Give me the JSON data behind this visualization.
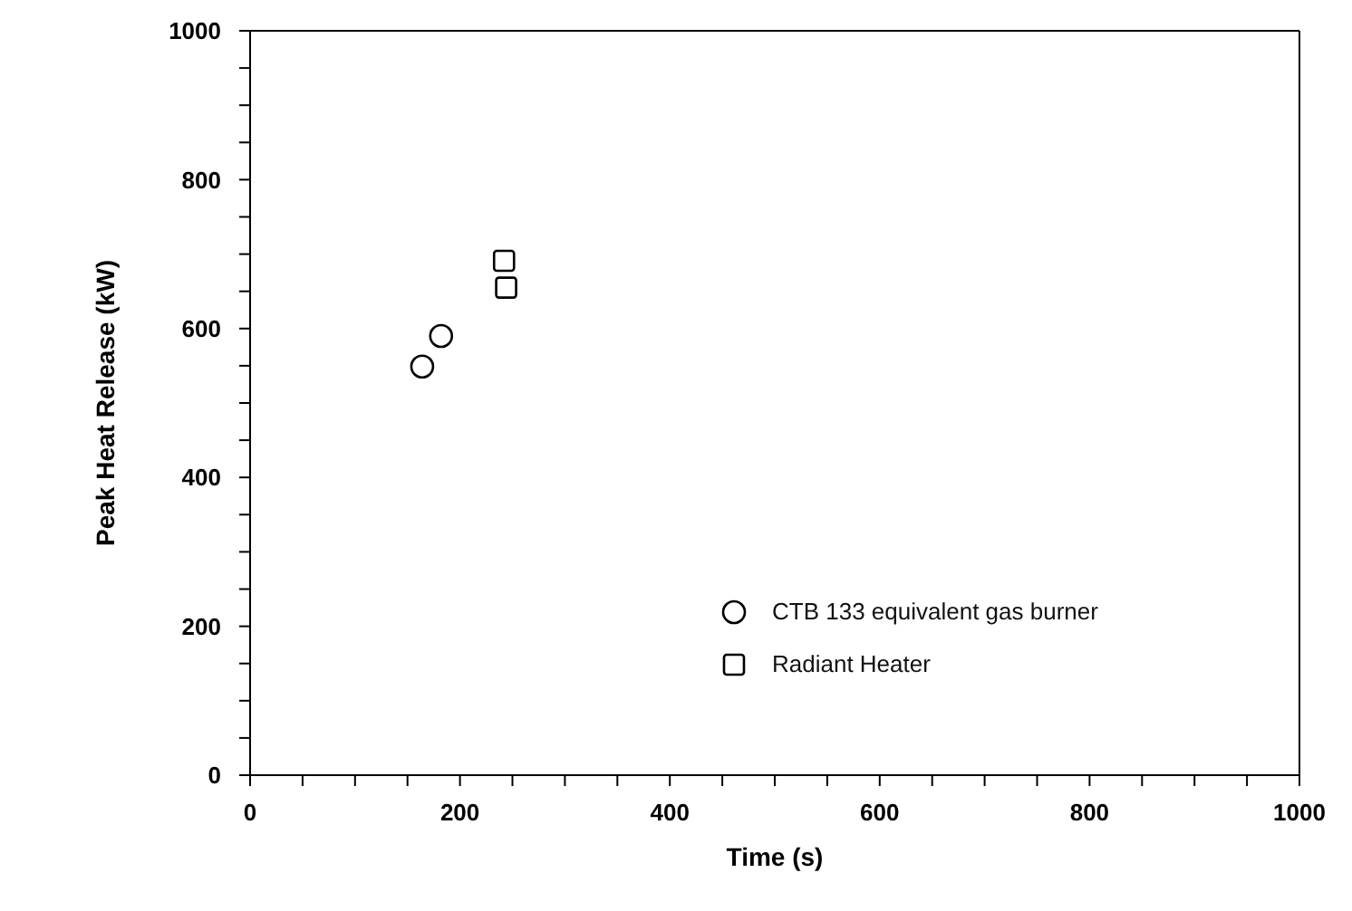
{
  "chart_data": {
    "type": "scatter",
    "xlabel": "Time  (s)",
    "ylabel": "Peak Heat Release (kW)",
    "xlim": [
      0,
      1000
    ],
    "ylim": [
      0,
      1000
    ],
    "xticks": [
      0,
      {
        "value": 50,
        "label": null
      },
      200,
      {
        "value": 100,
        "label": null
      },
      {
        "value": 150,
        "label": null
      },
      {
        "value": 250,
        "label": null
      },
      {
        "value": 300,
        "label": null
      },
      {
        "value": 350,
        "label": null
      },
      400,
      {
        "value": 450,
        "label": null
      },
      {
        "value": 500,
        "label": null
      },
      {
        "value": 550,
        "label": null
      },
      600,
      {
        "value": 650,
        "label": null
      },
      {
        "value": 700,
        "label": null
      },
      {
        "value": 750,
        "label": null
      },
      800,
      {
        "value": 850,
        "label": null
      },
      {
        "value": 900,
        "label": null
      },
      {
        "value": 950,
        "label": null
      },
      1000
    ],
    "yticks": [
      0,
      {
        "value": 50,
        "label": null
      },
      {
        "value": 100,
        "label": null
      },
      {
        "value": 150,
        "label": null
      },
      200,
      {
        "value": 250,
        "label": null
      },
      {
        "value": 300,
        "label": null
      },
      {
        "value": 350,
        "label": null
      },
      400,
      {
        "value": 450,
        "label": null
      },
      {
        "value": 500,
        "label": null
      },
      {
        "value": 550,
        "label": null
      },
      600,
      {
        "value": 650,
        "label": null
      },
      {
        "value": 700,
        "label": null
      },
      {
        "value": 750,
        "label": null
      },
      800,
      {
        "value": 850,
        "label": null
      },
      {
        "value": 900,
        "label": null
      },
      {
        "value": 950,
        "label": null
      },
      1000
    ],
    "legend": "bottom right",
    "series": [
      {
        "name": "CTB 133 equivalent gas burner",
        "color": "#000000",
        "marker": "circle",
        "x": [
          164,
          182
        ],
        "values": [
          549,
          590
        ]
      },
      {
        "name": "Radiant Heater",
        "color": "#000000",
        "marker": "square",
        "x": [
          242,
          244
        ],
        "values": [
          691,
          655
        ]
      }
    ]
  }
}
